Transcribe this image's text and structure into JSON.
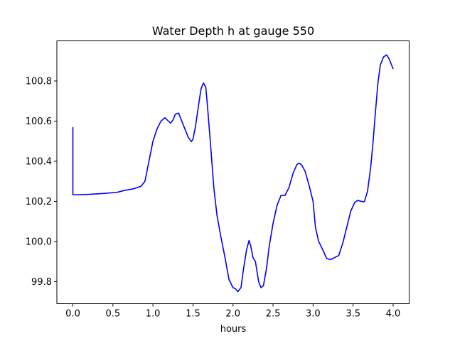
{
  "chart_data": {
    "type": "line",
    "title": "Water Depth h at gauge 550",
    "xlabel": "hours",
    "ylabel": "",
    "xlim": [
      -0.2,
      4.2
    ],
    "ylim": [
      99.69,
      101.0
    ],
    "xticks": [
      0.0,
      0.5,
      1.0,
      1.5,
      2.0,
      2.5,
      3.0,
      3.5,
      4.0
    ],
    "xtick_labels": [
      "0.0",
      "0.5",
      "1.0",
      "1.5",
      "2.0",
      "2.5",
      "3.0",
      "3.5",
      "4.0"
    ],
    "yticks": [
      99.8,
      100.0,
      100.2,
      100.4,
      100.6,
      100.8
    ],
    "ytick_labels": [
      "99.8",
      "100.0",
      "100.2",
      "100.4",
      "100.6",
      "100.8"
    ],
    "grid": false,
    "series": [
      {
        "color": "#0000ff",
        "x": [
          0.0,
          0.0,
          0.05,
          0.2,
          0.4,
          0.55,
          0.6,
          0.65,
          0.75,
          0.85,
          0.9,
          0.93,
          0.97,
          1.0,
          1.05,
          1.1,
          1.15,
          1.18,
          1.22,
          1.25,
          1.28,
          1.32,
          1.36,
          1.4,
          1.44,
          1.48,
          1.5,
          1.53,
          1.57,
          1.6,
          1.63,
          1.66,
          1.68,
          1.72,
          1.76,
          1.8,
          1.85,
          1.9,
          1.95,
          2.0,
          2.03,
          2.06,
          2.1,
          2.13,
          2.17,
          2.2,
          2.22,
          2.25,
          2.28,
          2.32,
          2.35,
          2.38,
          2.42,
          2.45,
          2.5,
          2.55,
          2.6,
          2.65,
          2.7,
          2.75,
          2.8,
          2.83,
          2.86,
          2.9,
          2.95,
          3.0,
          3.03,
          3.07,
          3.12,
          3.17,
          3.22,
          3.27,
          3.32,
          3.37,
          3.42,
          3.47,
          3.52,
          3.56,
          3.6,
          3.64,
          3.68,
          3.72,
          3.75,
          3.78,
          3.81,
          3.84,
          3.88,
          3.92,
          3.95,
          3.98,
          4.0
        ],
        "y": [
          100.57,
          100.233,
          100.233,
          100.235,
          100.24,
          100.245,
          100.25,
          100.255,
          100.262,
          100.275,
          100.3,
          100.36,
          100.44,
          100.5,
          100.56,
          100.6,
          100.617,
          100.605,
          100.59,
          100.605,
          100.635,
          100.64,
          100.6,
          100.56,
          100.52,
          100.498,
          100.51,
          100.57,
          100.68,
          100.76,
          100.79,
          100.77,
          100.68,
          100.48,
          100.27,
          100.13,
          100.02,
          99.92,
          99.81,
          99.77,
          99.765,
          99.75,
          99.77,
          99.86,
          99.96,
          100.005,
          99.98,
          99.92,
          99.9,
          99.8,
          99.77,
          99.78,
          99.87,
          99.97,
          100.09,
          100.18,
          100.23,
          100.23,
          100.27,
          100.34,
          100.385,
          100.39,
          100.38,
          100.35,
          100.28,
          100.2,
          100.07,
          100.0,
          99.96,
          99.915,
          99.91,
          99.92,
          99.93,
          99.99,
          100.07,
          100.15,
          100.195,
          100.205,
          100.2,
          100.198,
          100.25,
          100.37,
          100.5,
          100.65,
          100.79,
          100.88,
          100.92,
          100.93,
          100.91,
          100.88,
          100.86
        ]
      }
    ]
  }
}
